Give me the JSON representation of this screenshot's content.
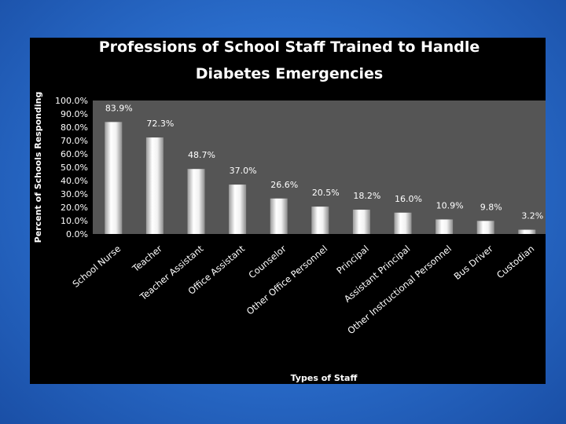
{
  "chart_data": {
    "type": "bar",
    "title_lines": [
      "Professions of School Staff Trained to Handle",
      "Diabetes Emergencies"
    ],
    "xlabel": "Types of Staff",
    "ylabel": "Percent of Schools Responding",
    "ylim": [
      0,
      100
    ],
    "y_ticks": [
      "0.0%",
      "10.0%",
      "20.0%",
      "30.0%",
      "40.0%",
      "50.0%",
      "60.0%",
      "70.0%",
      "80.0%",
      "90.0%",
      "100.0%"
    ],
    "categories": [
      "School Nurse",
      "Teacher",
      "Teacher Assistant",
      "Office Assistant",
      "Counselor",
      "Other Office Personnel",
      "Principal",
      "Assistant Principal",
      "Other Instructional Personnel",
      "Bus Driver",
      "Custodian"
    ],
    "values": [
      83.9,
      72.3,
      48.7,
      37.0,
      26.6,
      20.5,
      18.2,
      16.0,
      10.9,
      9.8,
      3.2
    ],
    "data_labels": [
      "83.9%",
      "72.3%",
      "48.7%",
      "37.0%",
      "26.6%",
      "20.5%",
      "18.2%",
      "16.0%",
      "10.9%",
      "9.8%",
      "3.2%"
    ],
    "grid": false,
    "legend": "none"
  },
  "colors": {
    "panel": "#000000",
    "plot_area": "#555555",
    "bar_light": "#ffffff",
    "bar_shade": "#8c8c8c",
    "text": "#ffffff"
  }
}
